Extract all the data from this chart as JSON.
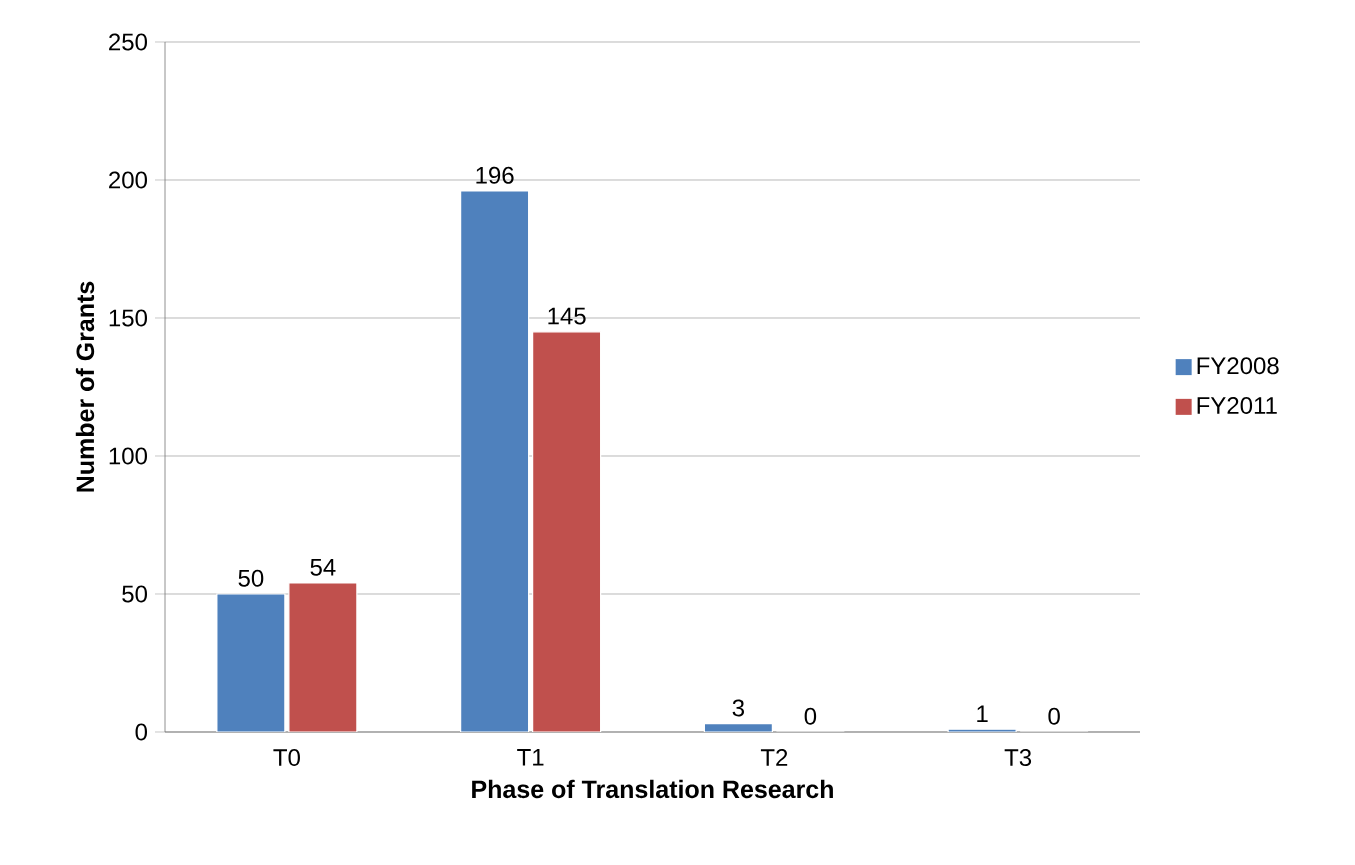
{
  "chart_data": {
    "type": "bar",
    "xlabel": "Phase of Translation Research",
    "ylabel": "Number of Grants",
    "categories": [
      "T0",
      "T1",
      "T2",
      "T3"
    ],
    "series": [
      {
        "name": "FY2008",
        "color": "#4f81bd",
        "values": [
          50,
          196,
          3,
          1
        ]
      },
      {
        "name": "FY2011",
        "color": "#c0504d",
        "values": [
          54,
          145,
          0,
          0
        ]
      }
    ],
    "ylim": [
      0,
      250
    ],
    "yticks": [
      0,
      50,
      100,
      150,
      200,
      250
    ],
    "grid": "y",
    "legend": "right",
    "data_labels": true
  }
}
